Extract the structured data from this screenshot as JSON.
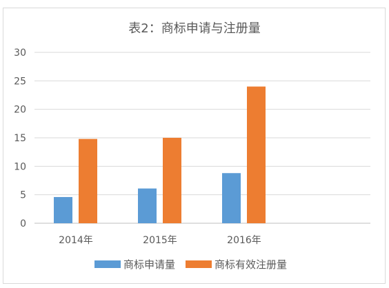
{
  "chart_data": {
    "type": "bar",
    "title": "表2：商标申请与注册量",
    "categories": [
      "2014年",
      "2015年",
      "2016年"
    ],
    "series": [
      {
        "name": "商标申请量",
        "values": [
          4.6,
          6.1,
          8.8
        ],
        "color": "#5b9bd5"
      },
      {
        "name": "商标有效注册量",
        "values": [
          14.8,
          15.0,
          24.0
        ],
        "color": "#ed7d31"
      }
    ],
    "ylim": [
      0,
      30
    ],
    "yticks": [
      "0",
      "5",
      "10",
      "15",
      "20",
      "25",
      "30"
    ],
    "grid": true,
    "legend_position": "bottom"
  }
}
